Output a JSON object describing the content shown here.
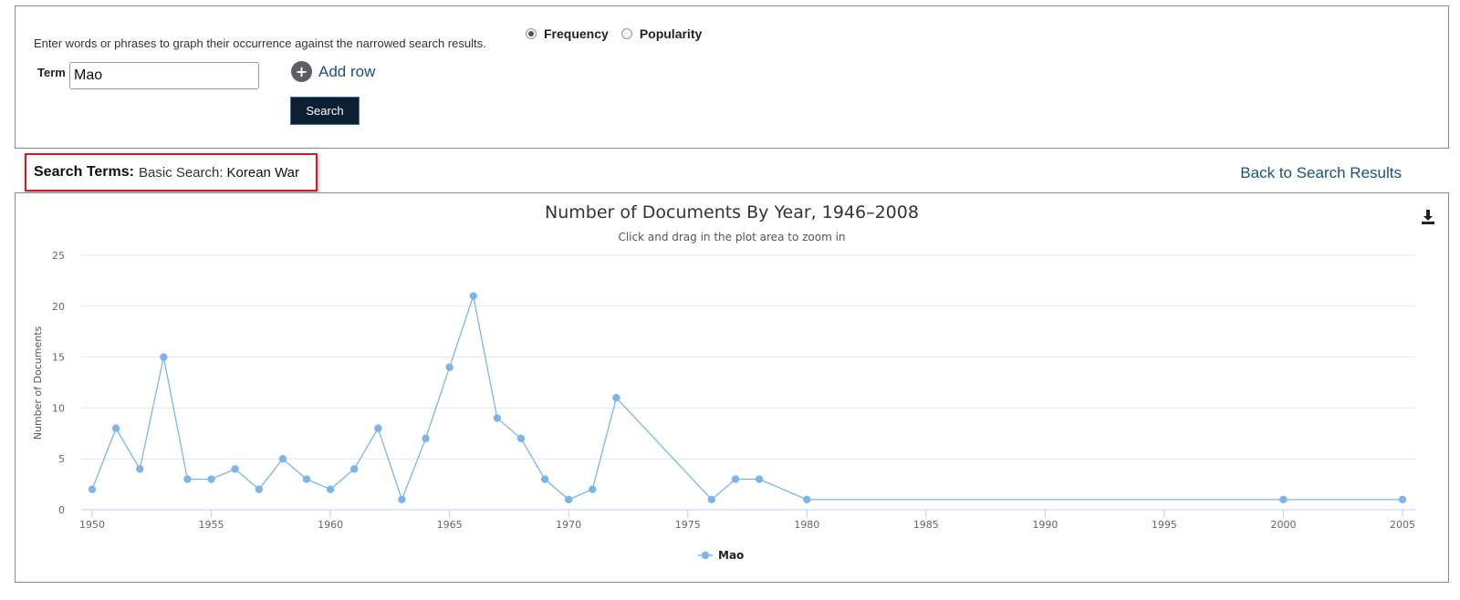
{
  "form": {
    "instructions": "Enter words or phrases to graph their occurrence against the narrowed search results.",
    "term_label": "Term",
    "term_value": "Mao",
    "add_row_label": "Add row",
    "search_label": "Search",
    "modes": [
      {
        "label": "Frequency",
        "checked": true
      },
      {
        "label": "Popularity",
        "checked": false
      }
    ]
  },
  "search_terms": {
    "label": "Search Terms:",
    "type": "Basic Search:",
    "value": "Korean War"
  },
  "back_link": "Back to Search Results",
  "icons": {
    "add": "plus-circle-icon",
    "download": "download-icon"
  },
  "colors": {
    "series": "#7cb5ec",
    "accent_link": "#1d4f7a",
    "highlight_border": "#cc1f1f",
    "button_bg": "#0d1f33"
  },
  "chart_data": {
    "type": "line",
    "title": "Number of Documents By Year, 1946–2008",
    "subtitle": "Click and drag in the plot area to zoom in",
    "xlabel": "",
    "ylabel": "Number of Documents",
    "xlim": [
      1950,
      2005
    ],
    "ylim": [
      0,
      25
    ],
    "xticks": [
      1950,
      1955,
      1960,
      1965,
      1970,
      1975,
      1980,
      1985,
      1990,
      1995,
      2000,
      2005
    ],
    "yticks": [
      0,
      5,
      10,
      15,
      20,
      25
    ],
    "grid": true,
    "legend": "bottom-center",
    "series": [
      {
        "name": "Mao",
        "x": [
          1950,
          1951,
          1952,
          1953,
          1954,
          1955,
          1956,
          1957,
          1958,
          1959,
          1960,
          1961,
          1962,
          1963,
          1964,
          1965,
          1966,
          1967,
          1968,
          1969,
          1970,
          1971,
          1972,
          1976,
          1977,
          1978,
          1980,
          2000,
          2005
        ],
        "y": [
          2,
          8,
          4,
          15,
          3,
          3,
          4,
          2,
          5,
          3,
          2,
          4,
          8,
          1,
          7,
          14,
          21,
          9,
          7,
          3,
          1,
          2,
          11,
          1,
          3,
          3,
          1,
          1,
          1
        ]
      }
    ]
  }
}
